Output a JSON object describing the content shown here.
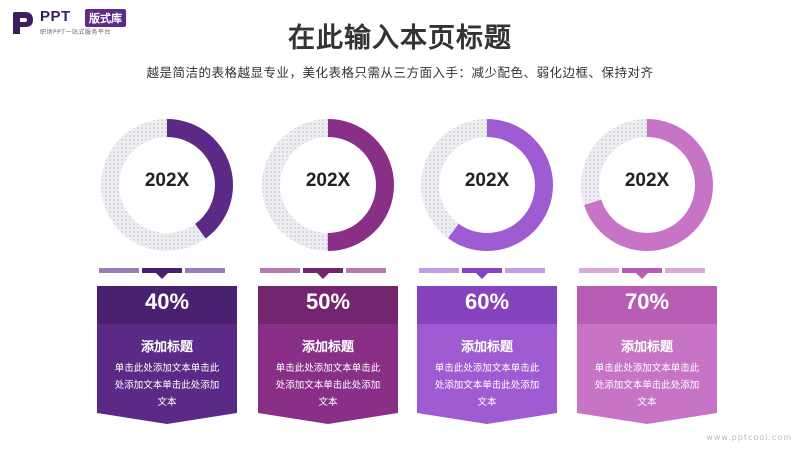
{
  "logo": {
    "name": "PPT",
    "badge": "版式库",
    "tagline": "职场PPT一站式服务平台"
  },
  "title": "在此输入本页标题",
  "subtitle": "越是简洁的表格越显专业，美化表格只需从三方面入手：减少配色、弱化边框、保持对齐",
  "cards": [
    {
      "ring_label": "202X",
      "percent_label": "40%",
      "progress": 0.4,
      "heading": "添加标题",
      "body": "单击此处添加文本单击此处添加文本单击此处添加文本",
      "color": "#5b2a86",
      "top_color": "#4a2170",
      "seg_light": "#9b7bb8"
    },
    {
      "ring_label": "202X",
      "percent_label": "50%",
      "progress": 0.5,
      "heading": "添加标题",
      "body": "单击此处添加文本单击此处添加文本单击此处添加文本",
      "color": "#8a2f87",
      "top_color": "#742570",
      "seg_light": "#b67ab3"
    },
    {
      "ring_label": "202X",
      "percent_label": "60%",
      "progress": 0.6,
      "heading": "添加标题",
      "body": "单击此处添加文本单击此处添加文本单击此处添加文本",
      "color": "#9e5bd2",
      "top_color": "#8544bd",
      "seg_light": "#c19de2"
    },
    {
      "ring_label": "202X",
      "percent_label": "70%",
      "progress": 0.7,
      "heading": "添加标题",
      "body": "单击此处添加文本单击此处添加文本单击此处添加文本",
      "color": "#c874c6",
      "top_color": "#b75db5",
      "seg_light": "#dda8dc"
    }
  ],
  "watermark": "www.pptcool.com"
}
